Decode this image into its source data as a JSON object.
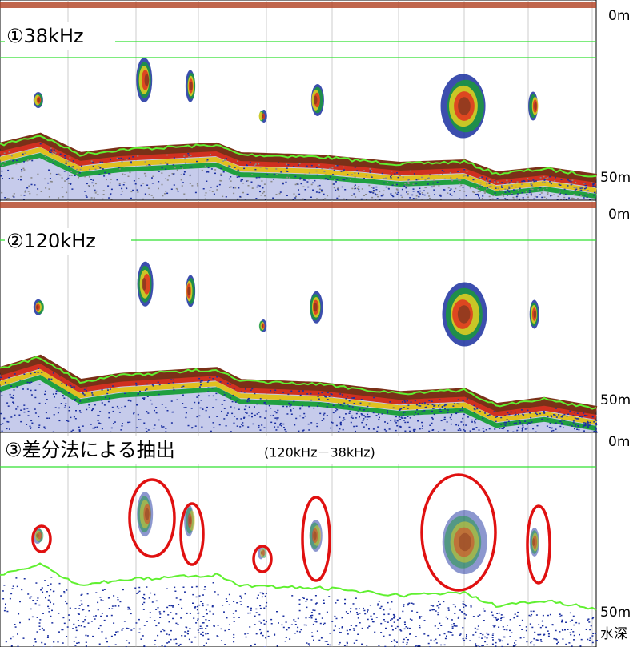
{
  "panels": [
    {
      "label": "①38kHz",
      "top_depth": "0m",
      "bottom_depth": "50m"
    },
    {
      "label": "②120kHz",
      "top_depth": "0m",
      "bottom_depth": "50m"
    },
    {
      "label": "③差分法による抽出",
      "sublabel": "(120kHz－38kHz)",
      "top_depth": "0m",
      "bottom_depth": "50m"
    }
  ],
  "depth_axis_label": "水深"
}
